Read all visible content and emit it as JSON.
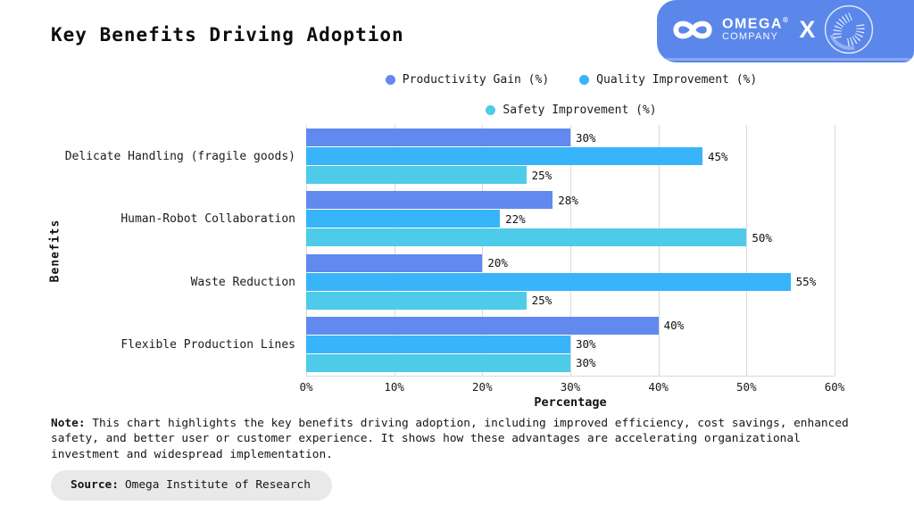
{
  "header": {
    "title": "Key Benefits Driving Adoption"
  },
  "brand": {
    "name": "OMEGA",
    "reg": "®",
    "subname": "COMPANY",
    "x": "X",
    "banner_color": "#5b87ea"
  },
  "chart_data": {
    "type": "bar",
    "orientation": "horizontal",
    "categories": [
      "Delicate Handling (fragile goods)",
      "Human-Robot Collaboration",
      "Waste Reduction",
      "Flexible Production Lines"
    ],
    "series": [
      {
        "name": "Productivity Gain (%)",
        "color": "#6189ee",
        "values": [
          30,
          28,
          20,
          40
        ]
      },
      {
        "name": "Quality Improvement (%)",
        "color": "#38b4fb",
        "values": [
          45,
          22,
          55,
          30
        ]
      },
      {
        "name": "Safety Improvement (%)",
        "color": "#4ecbe8",
        "values": [
          25,
          50,
          25,
          30
        ]
      }
    ],
    "value_suffix": "%",
    "xlabel": "Percentage",
    "ylabel": "Benefits",
    "xlim": [
      0,
      60
    ],
    "xticks": [
      "0%",
      "10%",
      "20%",
      "30%",
      "40%",
      "50%",
      "60%"
    ],
    "grid": "vertical",
    "legend_position": "top-center",
    "gridline_color": "#d9d9d9"
  },
  "note": {
    "label": "Note:",
    "text": "This chart highlights the key benefits driving adoption, including improved efficiency, cost savings, enhanced safety, and better user or customer experience. It shows how these advantages are accelerating organizational investment and widespread implementation."
  },
  "source": {
    "label": "Source:",
    "text": "Omega Institute of Research"
  }
}
